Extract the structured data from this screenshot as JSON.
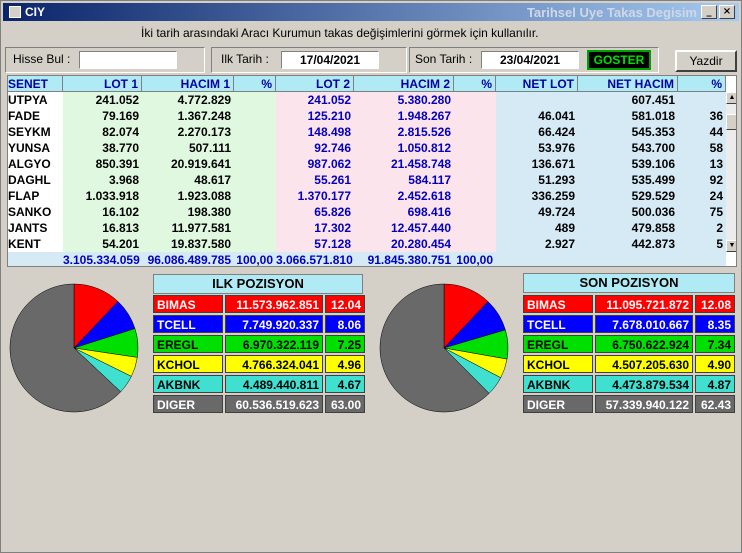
{
  "window": {
    "title": "CIY",
    "caption": "Tarihsel Uye Takas Degisim"
  },
  "hint": "İki tarih arasındaki  Aracı Kurumun takas değişimlerini görmek için kullanılır.",
  "filters": {
    "hisse_label": "Hisse Bul :",
    "hisse_value": "",
    "ilk_label": "Ilk Tarih :",
    "ilk_value": "17/04/2021",
    "son_label": "Son Tarih :",
    "son_value": "23/04/2021",
    "goster_label": "GOSTER",
    "yazdir_label": "Yazdir"
  },
  "table": {
    "headers": [
      "SENET",
      "LOT 1",
      "HACIM 1",
      "%",
      "LOT 2",
      "HACIM 2",
      "%",
      "NET LOT",
      "NET HACIM",
      "%"
    ],
    "rows": [
      [
        "UTPYA",
        "241.052",
        "4.772.829",
        "",
        "241.052",
        "5.380.280",
        "",
        "",
        "607.451",
        ""
      ],
      [
        "FADE",
        "79.169",
        "1.367.248",
        "",
        "125.210",
        "1.948.267",
        "",
        "46.041",
        "581.018",
        "36"
      ],
      [
        "SEYKM",
        "82.074",
        "2.270.173",
        "",
        "148.498",
        "2.815.526",
        "",
        "66.424",
        "545.353",
        "44"
      ],
      [
        "YUNSA",
        "38.770",
        "507.111",
        "",
        "92.746",
        "1.050.812",
        "",
        "53.976",
        "543.700",
        "58"
      ],
      [
        "ALGYO",
        "850.391",
        "20.919.641",
        "",
        "987.062",
        "21.458.748",
        "",
        "136.671",
        "539.106",
        "13"
      ],
      [
        "DAGHL",
        "3.968",
        "48.617",
        "",
        "55.261",
        "584.117",
        "",
        "51.293",
        "535.499",
        "92"
      ],
      [
        "FLAP",
        "1.033.918",
        "1.923.088",
        "",
        "1.370.177",
        "2.452.618",
        "",
        "336.259",
        "529.529",
        "24"
      ],
      [
        "SANKO",
        "16.102",
        "198.380",
        "",
        "65.826",
        "698.416",
        "",
        "49.724",
        "500.036",
        "75"
      ],
      [
        "JANTS",
        "16.813",
        "11.977.581",
        "",
        "17.302",
        "12.457.440",
        "",
        "489",
        "479.858",
        "2"
      ],
      [
        "KENT",
        "54.201",
        "19.837.580",
        "",
        "57.128",
        "20.280.454",
        "",
        "2.927",
        "442.873",
        "5"
      ]
    ],
    "totals": [
      "",
      "3.105.334.059",
      "96.086.489.785",
      "100,00",
      "3.066.571.810",
      "91.845.380.751",
      "100,00",
      "",
      "",
      ""
    ]
  },
  "ilk_pozisyon": {
    "title": "ILK POZISYON",
    "rows": [
      {
        "name": "BIMAS",
        "value": "11.573.962.851",
        "pct": "12.04",
        "pct_num": 12.04,
        "color": "#ff0000",
        "text": "#ffffff"
      },
      {
        "name": "TCELL",
        "value": "7.749.920.337",
        "pct": "8.06",
        "pct_num": 8.06,
        "color": "#0000ff",
        "text": "#ffffff"
      },
      {
        "name": "EREGL",
        "value": "6.970.322.119",
        "pct": "7.25",
        "pct_num": 7.25,
        "color": "#00e000",
        "text": "#000000"
      },
      {
        "name": "KCHOL",
        "value": "4.766.324.041",
        "pct": "4.96",
        "pct_num": 4.96,
        "color": "#ffff00",
        "text": "#000000"
      },
      {
        "name": "AKBNK",
        "value": "4.489.440.811",
        "pct": "4.67",
        "pct_num": 4.67,
        "color": "#40e0d0",
        "text": "#000000"
      },
      {
        "name": "DIGER",
        "value": "60.536.519.623",
        "pct": "63.00",
        "pct_num": 63.0,
        "color": "#696969",
        "text": "#ffffff"
      }
    ]
  },
  "son_pozisyon": {
    "title": "SON POZISYON",
    "rows": [
      {
        "name": "BIMAS",
        "value": "11.095.721.872",
        "pct": "12.08",
        "pct_num": 12.08,
        "color": "#ff0000",
        "text": "#ffffff"
      },
      {
        "name": "TCELL",
        "value": "7.678.010.667",
        "pct": "8.35",
        "pct_num": 8.35,
        "color": "#0000ff",
        "text": "#ffffff"
      },
      {
        "name": "EREGL",
        "value": "6.750.622.924",
        "pct": "7.34",
        "pct_num": 7.34,
        "color": "#00e000",
        "text": "#000000"
      },
      {
        "name": "KCHOL",
        "value": "4.507.205.630",
        "pct": "4.90",
        "pct_num": 4.9,
        "color": "#ffff00",
        "text": "#000000"
      },
      {
        "name": "AKBNK",
        "value": "4.473.879.534",
        "pct": "4.87",
        "pct_num": 4.87,
        "color": "#40e0d0",
        "text": "#000000"
      },
      {
        "name": "DIGER",
        "value": "57.339.940.122",
        "pct": "62.43",
        "pct_num": 62.43,
        "color": "#696969",
        "text": "#ffffff"
      }
    ]
  },
  "colors": {
    "lot1_bg": "#e0f8e0",
    "lot2_bg": "#fce4ec",
    "net_bg": "#d6eaf6",
    "senet_bg": "#ffffff",
    "lot1_text": "#000000",
    "lot2_text": "#0000c0",
    "header_bg": "#b0eaf4",
    "header_text": "#0000a0"
  }
}
